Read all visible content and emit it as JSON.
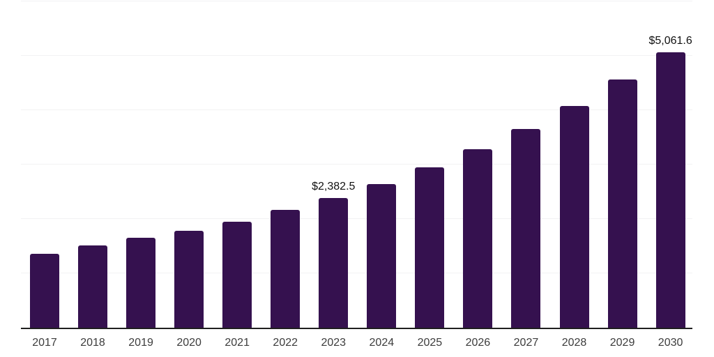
{
  "chart_data": {
    "type": "bar",
    "title": "",
    "xlabel": "",
    "ylabel": "",
    "categories": [
      "2017",
      "2018",
      "2019",
      "2020",
      "2021",
      "2022",
      "2023",
      "2024",
      "2025",
      "2026",
      "2027",
      "2028",
      "2029",
      "2030"
    ],
    "values": [
      1365,
      1507,
      1660,
      1777,
      1945,
      2163,
      2382.5,
      2646,
      2949,
      3284,
      3657,
      4082,
      4559,
      5061.6
    ],
    "data_labels": [
      {
        "category": "2023",
        "text": "$2,382.5"
      },
      {
        "category": "2030",
        "text": "$5,061.6"
      }
    ],
    "ylim": [
      0,
      6000
    ],
    "gridline_interval": 1000,
    "grid": "horizontal",
    "legend": "none",
    "y_tick_labels_visible": false
  },
  "style": {
    "bar_color": "#35114F",
    "grid_color": "#F2F2F3",
    "axis_color": "#1F1F1F",
    "tick_label_color": "#3C3C3C",
    "data_label_color": "#111111",
    "background_color": "#FFFFFF"
  }
}
